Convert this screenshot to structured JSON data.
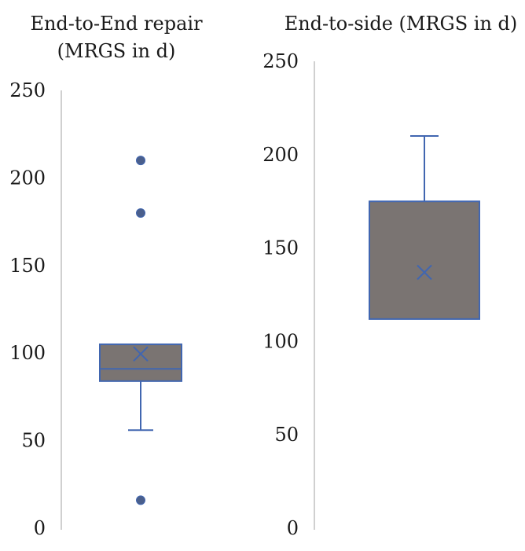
{
  "chart_data": [
    {
      "type": "box",
      "title_lines": [
        "End-to-End repair",
        "(MRGS in d)"
      ],
      "ylim": [
        0,
        250
      ],
      "yticks": [
        0,
        50,
        100,
        150,
        200,
        250
      ],
      "grid": false,
      "box": {
        "q1": 84,
        "median": 91,
        "q3": 105,
        "whisker_low": 56,
        "whisker_high": 105,
        "mean": 99.5
      },
      "outliers": [
        210,
        180,
        16
      ],
      "colors": {
        "box_fill": "#7a7472",
        "stroke": "#4166b0",
        "axis": "#d0d0d0"
      }
    },
    {
      "type": "box",
      "title_lines": [
        "End-to-side (MRGS in d)"
      ],
      "ylim": [
        0,
        250
      ],
      "yticks": [
        0,
        50,
        100,
        150,
        200,
        250
      ],
      "grid": false,
      "box": {
        "q1": 112,
        "median": 112,
        "q3": 175,
        "whisker_low": 112,
        "whisker_high": 210,
        "mean": 137
      },
      "outliers": [],
      "colors": {
        "box_fill": "#7a7472",
        "stroke": "#4166b0",
        "axis": "#d0d0d0"
      }
    }
  ]
}
